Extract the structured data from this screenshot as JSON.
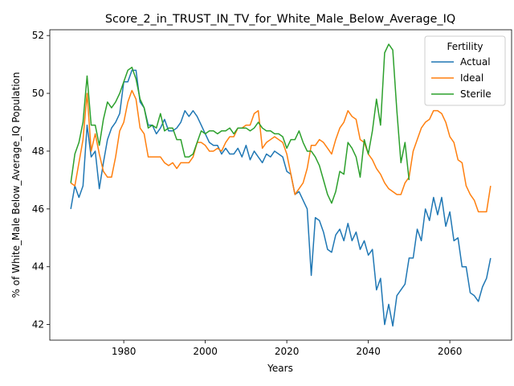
{
  "chart_data": {
    "type": "line",
    "title": "Score_2_in_TRUST_IN_TV_for_White_Male_Below_Average_IQ",
    "xlabel": "Years",
    "ylabel": "% of White_Male Below_Average_IQ Population",
    "legend_title": "Fertility",
    "legend": "upper right",
    "x": [
      1967,
      1968,
      1969,
      1970,
      1971,
      1972,
      1973,
      1974,
      1975,
      1976,
      1977,
      1978,
      1979,
      1980,
      1981,
      1982,
      1983,
      1984,
      1985,
      1986,
      1987,
      1988,
      1989,
      1990,
      1991,
      1992,
      1993,
      1994,
      1995,
      1996,
      1997,
      1998,
      1999,
      2000,
      2001,
      2002,
      2003,
      2004,
      2005,
      2006,
      2007,
      2008,
      2009,
      2010,
      2011,
      2012,
      2013,
      2014,
      2015,
      2016,
      2017,
      2018,
      2019,
      2020,
      2021,
      2022,
      2023,
      2024,
      2025,
      2026,
      2027,
      2028,
      2029,
      2030,
      2031,
      2032,
      2033,
      2034,
      2035,
      2036,
      2037,
      2038,
      2039,
      2040,
      2041,
      2042,
      2043,
      2044,
      2045,
      2046,
      2047,
      2048,
      2049,
      2050,
      2051,
      2052,
      2053,
      2054,
      2055,
      2056,
      2057,
      2058,
      2059,
      2060,
      2061,
      2062,
      2063,
      2064,
      2065,
      2066,
      2067,
      2068,
      2069,
      2070
    ],
    "series": [
      {
        "name": "Actual",
        "color": "#1f77b4",
        "values": [
          46.0,
          46.8,
          46.4,
          46.8,
          48.9,
          47.8,
          48.0,
          46.7,
          47.6,
          48.4,
          48.8,
          49.0,
          49.3,
          50.4,
          50.4,
          50.8,
          50.8,
          49.7,
          49.5,
          48.9,
          48.9,
          48.6,
          48.8,
          49.1,
          48.7,
          48.7,
          48.8,
          49.0,
          49.4,
          49.2,
          49.4,
          49.2,
          48.9,
          48.6,
          48.3,
          48.2,
          48.2,
          47.9,
          48.1,
          47.9,
          47.9,
          48.1,
          47.8,
          48.2,
          47.7,
          48.0,
          47.8,
          47.6,
          47.9,
          47.8,
          48.0,
          47.9,
          47.8,
          47.3,
          47.2,
          46.5,
          46.6,
          46.3,
          46.0,
          43.7,
          45.7,
          45.6,
          45.2,
          44.6,
          44.5,
          45.1,
          45.3,
          44.9,
          45.5,
          44.9,
          45.2,
          44.6,
          44.9,
          44.4,
          44.6,
          43.2,
          43.6,
          42.0,
          42.7,
          41.95,
          43.0,
          43.2,
          43.4,
          44.3,
          44.3,
          45.3,
          44.9,
          46.0,
          45.6,
          46.4,
          45.8,
          46.4,
          45.4,
          45.9,
          44.9,
          45.0,
          44.0,
          44.0,
          43.1,
          43.0,
          42.8,
          43.3,
          43.6,
          44.3
        ]
      },
      {
        "name": "Ideal",
        "color": "#ff7f0e",
        "values": [
          46.9,
          46.8,
          47.6,
          48.4,
          50.0,
          48.0,
          48.6,
          47.9,
          47.3,
          47.1,
          47.1,
          47.8,
          48.7,
          49.0,
          49.7,
          50.1,
          49.8,
          48.8,
          48.6,
          47.8,
          47.8,
          47.8,
          47.8,
          47.6,
          47.5,
          47.6,
          47.4,
          47.6,
          47.6,
          47.6,
          47.8,
          48.3,
          48.3,
          48.2,
          48.0,
          48.0,
          48.1,
          48.0,
          48.3,
          48.5,
          48.5,
          48.8,
          48.8,
          48.9,
          48.9,
          49.3,
          49.4,
          48.1,
          48.3,
          48.4,
          48.5,
          48.4,
          48.3,
          47.9,
          47.2,
          46.5,
          46.7,
          46.9,
          47.4,
          48.2,
          48.2,
          48.4,
          48.3,
          48.1,
          47.9,
          48.4,
          48.8,
          49.0,
          49.4,
          49.2,
          49.1,
          48.4,
          48.3,
          47.9,
          47.7,
          47.4,
          47.2,
          46.9,
          46.7,
          46.6,
          46.5,
          46.5,
          46.9,
          47.1,
          48.0,
          48.4,
          48.8,
          49.0,
          49.1,
          49.4,
          49.4,
          49.3,
          49.0,
          48.5,
          48.3,
          47.7,
          47.6,
          46.8,
          46.5,
          46.3,
          45.9,
          45.9,
          45.9,
          46.8
        ]
      },
      {
        "name": "Sterile",
        "color": "#2ca02c",
        "values": [
          46.9,
          47.9,
          48.3,
          49.0,
          50.6,
          48.9,
          48.9,
          48.2,
          49.1,
          49.7,
          49.5,
          49.7,
          50.0,
          50.4,
          50.8,
          50.9,
          50.5,
          49.8,
          49.5,
          48.8,
          48.9,
          48.8,
          49.3,
          48.7,
          48.8,
          48.8,
          48.4,
          48.4,
          47.8,
          47.8,
          47.9,
          48.3,
          48.7,
          48.6,
          48.7,
          48.7,
          48.6,
          48.7,
          48.7,
          48.8,
          48.6,
          48.8,
          48.8,
          48.8,
          48.7,
          48.8,
          49.0,
          48.8,
          48.7,
          48.7,
          48.6,
          48.6,
          48.5,
          48.1,
          48.4,
          48.4,
          48.7,
          48.3,
          48.0,
          48.0,
          47.8,
          47.5,
          47.0,
          46.5,
          46.2,
          46.6,
          47.3,
          47.2,
          48.3,
          48.1,
          47.8,
          47.1,
          48.4,
          47.9,
          48.7,
          49.8,
          48.9,
          51.4,
          51.7,
          51.5,
          49.4,
          47.6,
          48.3,
          47.0,
          null,
          null,
          null,
          null,
          null,
          null,
          null,
          null,
          null,
          null,
          null,
          null,
          null,
          null,
          null,
          null,
          null,
          null,
          null,
          null
        ]
      }
    ],
    "xlim": [
      1961.85,
      2075.15
    ],
    "ylim": [
      41.46,
      52.2
    ],
    "xticks": [
      1980,
      2000,
      2020,
      2040,
      2060
    ],
    "yticks": [
      42,
      44,
      46,
      48,
      50,
      52
    ]
  }
}
